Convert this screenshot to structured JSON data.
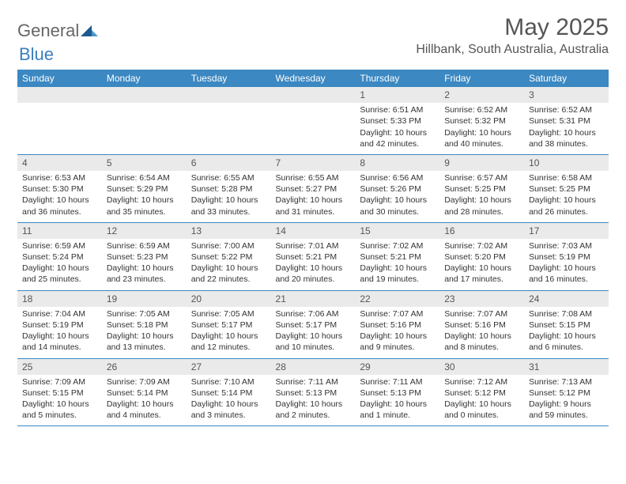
{
  "logo": {
    "text1": "General",
    "text2": "Blue"
  },
  "title": "May 2025",
  "location": "Hillbank, South Australia, Australia",
  "colors": {
    "header_bg": "#3b88c2",
    "header_text": "#ffffff",
    "daynum_bg": "#eaeaea",
    "border": "#3b88c2",
    "text": "#333333"
  },
  "weekdays": [
    "Sunday",
    "Monday",
    "Tuesday",
    "Wednesday",
    "Thursday",
    "Friday",
    "Saturday"
  ],
  "weeks": [
    [
      null,
      null,
      null,
      null,
      {
        "n": "1",
        "sr": "Sunrise: 6:51 AM",
        "ss": "Sunset: 5:33 PM",
        "dl": "Daylight: 10 hours and 42 minutes."
      },
      {
        "n": "2",
        "sr": "Sunrise: 6:52 AM",
        "ss": "Sunset: 5:32 PM",
        "dl": "Daylight: 10 hours and 40 minutes."
      },
      {
        "n": "3",
        "sr": "Sunrise: 6:52 AM",
        "ss": "Sunset: 5:31 PM",
        "dl": "Daylight: 10 hours and 38 minutes."
      }
    ],
    [
      {
        "n": "4",
        "sr": "Sunrise: 6:53 AM",
        "ss": "Sunset: 5:30 PM",
        "dl": "Daylight: 10 hours and 36 minutes."
      },
      {
        "n": "5",
        "sr": "Sunrise: 6:54 AM",
        "ss": "Sunset: 5:29 PM",
        "dl": "Daylight: 10 hours and 35 minutes."
      },
      {
        "n": "6",
        "sr": "Sunrise: 6:55 AM",
        "ss": "Sunset: 5:28 PM",
        "dl": "Daylight: 10 hours and 33 minutes."
      },
      {
        "n": "7",
        "sr": "Sunrise: 6:55 AM",
        "ss": "Sunset: 5:27 PM",
        "dl": "Daylight: 10 hours and 31 minutes."
      },
      {
        "n": "8",
        "sr": "Sunrise: 6:56 AM",
        "ss": "Sunset: 5:26 PM",
        "dl": "Daylight: 10 hours and 30 minutes."
      },
      {
        "n": "9",
        "sr": "Sunrise: 6:57 AM",
        "ss": "Sunset: 5:25 PM",
        "dl": "Daylight: 10 hours and 28 minutes."
      },
      {
        "n": "10",
        "sr": "Sunrise: 6:58 AM",
        "ss": "Sunset: 5:25 PM",
        "dl": "Daylight: 10 hours and 26 minutes."
      }
    ],
    [
      {
        "n": "11",
        "sr": "Sunrise: 6:59 AM",
        "ss": "Sunset: 5:24 PM",
        "dl": "Daylight: 10 hours and 25 minutes."
      },
      {
        "n": "12",
        "sr": "Sunrise: 6:59 AM",
        "ss": "Sunset: 5:23 PM",
        "dl": "Daylight: 10 hours and 23 minutes."
      },
      {
        "n": "13",
        "sr": "Sunrise: 7:00 AM",
        "ss": "Sunset: 5:22 PM",
        "dl": "Daylight: 10 hours and 22 minutes."
      },
      {
        "n": "14",
        "sr": "Sunrise: 7:01 AM",
        "ss": "Sunset: 5:21 PM",
        "dl": "Daylight: 10 hours and 20 minutes."
      },
      {
        "n": "15",
        "sr": "Sunrise: 7:02 AM",
        "ss": "Sunset: 5:21 PM",
        "dl": "Daylight: 10 hours and 19 minutes."
      },
      {
        "n": "16",
        "sr": "Sunrise: 7:02 AM",
        "ss": "Sunset: 5:20 PM",
        "dl": "Daylight: 10 hours and 17 minutes."
      },
      {
        "n": "17",
        "sr": "Sunrise: 7:03 AM",
        "ss": "Sunset: 5:19 PM",
        "dl": "Daylight: 10 hours and 16 minutes."
      }
    ],
    [
      {
        "n": "18",
        "sr": "Sunrise: 7:04 AM",
        "ss": "Sunset: 5:19 PM",
        "dl": "Daylight: 10 hours and 14 minutes."
      },
      {
        "n": "19",
        "sr": "Sunrise: 7:05 AM",
        "ss": "Sunset: 5:18 PM",
        "dl": "Daylight: 10 hours and 13 minutes."
      },
      {
        "n": "20",
        "sr": "Sunrise: 7:05 AM",
        "ss": "Sunset: 5:17 PM",
        "dl": "Daylight: 10 hours and 12 minutes."
      },
      {
        "n": "21",
        "sr": "Sunrise: 7:06 AM",
        "ss": "Sunset: 5:17 PM",
        "dl": "Daylight: 10 hours and 10 minutes."
      },
      {
        "n": "22",
        "sr": "Sunrise: 7:07 AM",
        "ss": "Sunset: 5:16 PM",
        "dl": "Daylight: 10 hours and 9 minutes."
      },
      {
        "n": "23",
        "sr": "Sunrise: 7:07 AM",
        "ss": "Sunset: 5:16 PM",
        "dl": "Daylight: 10 hours and 8 minutes."
      },
      {
        "n": "24",
        "sr": "Sunrise: 7:08 AM",
        "ss": "Sunset: 5:15 PM",
        "dl": "Daylight: 10 hours and 6 minutes."
      }
    ],
    [
      {
        "n": "25",
        "sr": "Sunrise: 7:09 AM",
        "ss": "Sunset: 5:15 PM",
        "dl": "Daylight: 10 hours and 5 minutes."
      },
      {
        "n": "26",
        "sr": "Sunrise: 7:09 AM",
        "ss": "Sunset: 5:14 PM",
        "dl": "Daylight: 10 hours and 4 minutes."
      },
      {
        "n": "27",
        "sr": "Sunrise: 7:10 AM",
        "ss": "Sunset: 5:14 PM",
        "dl": "Daylight: 10 hours and 3 minutes."
      },
      {
        "n": "28",
        "sr": "Sunrise: 7:11 AM",
        "ss": "Sunset: 5:13 PM",
        "dl": "Daylight: 10 hours and 2 minutes."
      },
      {
        "n": "29",
        "sr": "Sunrise: 7:11 AM",
        "ss": "Sunset: 5:13 PM",
        "dl": "Daylight: 10 hours and 1 minute."
      },
      {
        "n": "30",
        "sr": "Sunrise: 7:12 AM",
        "ss": "Sunset: 5:12 PM",
        "dl": "Daylight: 10 hours and 0 minutes."
      },
      {
        "n": "31",
        "sr": "Sunrise: 7:13 AM",
        "ss": "Sunset: 5:12 PM",
        "dl": "Daylight: 9 hours and 59 minutes."
      }
    ]
  ]
}
